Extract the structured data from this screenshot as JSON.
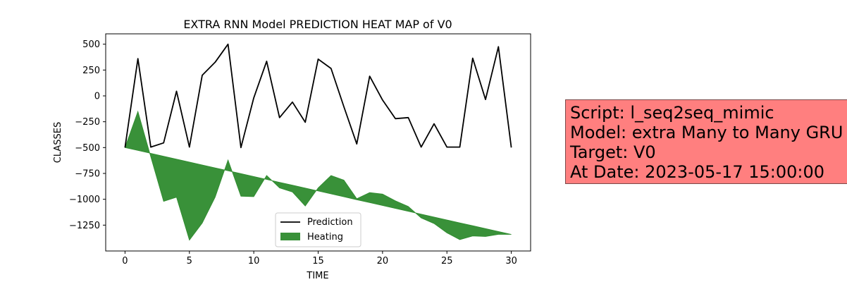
{
  "chart_data": {
    "type": "line",
    "title": "EXTRA RNN Model PREDICTION HEAT MAP of V0",
    "xlabel": "TIME",
    "ylabel": "CLASSES",
    "xlim": [
      -1.5,
      31.5
    ],
    "ylim": [
      -1500,
      600
    ],
    "xticks": [
      0,
      5,
      10,
      15,
      20,
      25,
      30
    ],
    "yticks": [
      500,
      250,
      0,
      -250,
      -500,
      -750,
      -1000,
      -1250
    ],
    "ytick_labels": [
      "500",
      "250",
      "0",
      "−250",
      "−500",
      "−750",
      "−1000",
      "−1250"
    ],
    "grid": false,
    "legend_position": "lower-center",
    "series": [
      {
        "name": "Prediction",
        "kind": "line",
        "color": "#000000",
        "x": [
          0,
          1,
          2,
          3,
          4,
          5,
          6,
          7,
          8,
          9,
          10,
          11,
          12,
          13,
          14,
          15,
          16,
          17,
          18,
          19,
          20,
          21,
          22,
          23,
          24,
          25,
          26,
          27,
          28,
          29,
          30
        ],
        "y": [
          -500,
          360,
          -495,
          -455,
          45,
          -495,
          200,
          325,
          500,
          -500,
          -20,
          335,
          -210,
          -60,
          -255,
          355,
          265,
          -105,
          -465,
          190,
          -40,
          -220,
          -210,
          -495,
          -270,
          -495,
          -495,
          365,
          -35,
          475,
          -500
        ]
      },
      {
        "name": "Heating",
        "kind": "fill_between",
        "color": "#2e8b2e",
        "x": [
          0,
          1,
          2,
          3,
          4,
          5,
          6,
          7,
          8,
          9,
          10,
          11,
          12,
          13,
          14,
          15,
          16,
          17,
          18,
          19,
          20,
          21,
          22,
          23,
          24,
          25,
          26,
          27,
          28,
          29,
          30
        ],
        "y1": [
          -500,
          -150,
          -590,
          -1020,
          -980,
          -1395,
          -1230,
          -980,
          -620,
          -970,
          -975,
          -770,
          -890,
          -930,
          -1065,
          -890,
          -770,
          -815,
          -995,
          -935,
          -950,
          -1015,
          -1070,
          -1180,
          -1235,
          -1325,
          -1390,
          -1355,
          -1360,
          -1340,
          -1340
        ],
        "y2": [
          -500,
          -528,
          -556,
          -584,
          -612,
          -640,
          -668,
          -696,
          -724,
          -752,
          -780,
          -808,
          -836,
          -864,
          -892,
          -920,
          -948,
          -976,
          -1004,
          -1032,
          -1060,
          -1088,
          -1116,
          -1144,
          -1172,
          -1200,
          -1228,
          -1256,
          -1284,
          -1312,
          -1340
        ]
      }
    ]
  },
  "info_box": {
    "background": "#ff7f7f",
    "lines": [
      "Script: l_seq2seq_mimic",
      "Model: extra Many to Many GRU",
      "Target: V0",
      "At Date: 2023-05-17 15:00:00"
    ]
  }
}
